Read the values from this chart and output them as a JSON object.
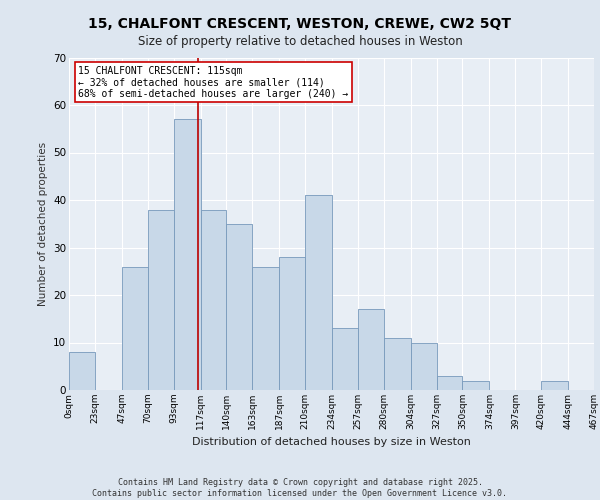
{
  "title_line1": "15, CHALFONT CRESCENT, WESTON, CREWE, CW2 5QT",
  "title_line2": "Size of property relative to detached houses in Weston",
  "xlabel": "Distribution of detached houses by size in Weston",
  "ylabel": "Number of detached properties",
  "bar_color": "#c8d8e8",
  "bar_edge_color": "#7799bb",
  "vline_x": 115,
  "vline_color": "#bb0000",
  "annotation_text": "15 CHALFONT CRESCENT: 115sqm\n← 32% of detached houses are smaller (114)\n68% of semi-detached houses are larger (240) →",
  "annotation_box_color": "#ffffff",
  "annotation_box_edge": "#cc0000",
  "footer_text": "Contains HM Land Registry data © Crown copyright and database right 2025.\nContains public sector information licensed under the Open Government Licence v3.0.",
  "bg_color": "#dde6f0",
  "plot_bg_color": "#e8eef5",
  "grid_color": "#ffffff",
  "ylim": [
    0,
    70
  ],
  "bin_edges": [
    0,
    23,
    47,
    70,
    93,
    117,
    140,
    163,
    187,
    210,
    234,
    257,
    280,
    304,
    327,
    350,
    374,
    397,
    420,
    444,
    467
  ],
  "bin_labels": [
    "0sqm",
    "23sqm",
    "47sqm",
    "70sqm",
    "93sqm",
    "117sqm",
    "140sqm",
    "163sqm",
    "187sqm",
    "210sqm",
    "234sqm",
    "257sqm",
    "280sqm",
    "304sqm",
    "327sqm",
    "350sqm",
    "374sqm",
    "397sqm",
    "420sqm",
    "444sqm",
    "467sqm"
  ],
  "bar_heights": [
    8,
    0,
    26,
    38,
    57,
    38,
    35,
    26,
    28,
    41,
    13,
    17,
    11,
    10,
    3,
    2,
    0,
    0,
    2,
    0
  ]
}
